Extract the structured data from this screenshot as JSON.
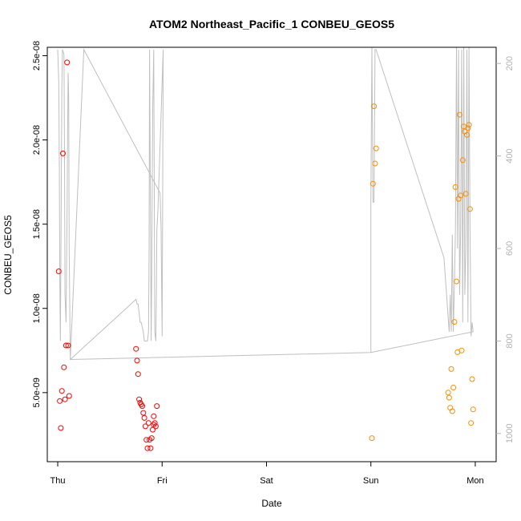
{
  "chart_data": {
    "type": "scatter",
    "title": "ATOM2 Northeast_Pacific_1 CONBEU_GEOS5",
    "xlabel": "Date",
    "ylabel": "CONBEU_GEOS5",
    "x_axis": {
      "unit": "days",
      "range": [
        -0.1,
        4.2
      ],
      "ticks": [
        {
          "value": 0,
          "label": "Thu"
        },
        {
          "value": 1,
          "label": "Fri"
        },
        {
          "value": 2,
          "label": "Sat"
        },
        {
          "value": 3,
          "label": "Sun"
        },
        {
          "value": 4,
          "label": "Mon"
        }
      ]
    },
    "y_axis": {
      "range": [
        9e-10,
        2.55e-08
      ],
      "ticks": [
        {
          "value": 5e-09,
          "label": "5.0e-09"
        },
        {
          "value": 1e-08,
          "label": "1.0e-08"
        },
        {
          "value": 1.5e-08,
          "label": "1.5e-08"
        },
        {
          "value": 2e-08,
          "label": "2.0e-08"
        },
        {
          "value": 2.5e-08,
          "label": "2.5e-08"
        }
      ]
    },
    "y2_axis": {
      "range": [
        1061,
        165
      ],
      "reversed": true,
      "color": "#b3b3b3",
      "ticks": [
        {
          "value": 200,
          "label": "200"
        },
        {
          "value": 400,
          "label": "400"
        },
        {
          "value": 600,
          "label": "600"
        },
        {
          "value": 800,
          "label": "800"
        },
        {
          "value": 1000,
          "label": "1000"
        }
      ]
    },
    "grid": false,
    "series": [
      {
        "color": "#ff0000",
        "marker": "open-circle",
        "points": [
          [
            0.01,
            1.22e-08
          ],
          [
            0.02,
            4.5e-09
          ],
          [
            0.03,
            2.9e-09
          ],
          [
            0.04,
            5.1e-09
          ],
          [
            0.05,
            1.92e-08
          ],
          [
            0.06,
            6.5e-09
          ],
          [
            0.07,
            4.6e-09
          ],
          [
            0.08,
            7.8e-09
          ],
          [
            0.09,
            2.46e-08
          ],
          [
            0.1,
            7.8e-09
          ],
          [
            0.11,
            4.8e-09
          ],
          [
            0.75,
            7.6e-09
          ],
          [
            0.76,
            6.9e-09
          ],
          [
            0.77,
            6.1e-09
          ],
          [
            0.78,
            4.6e-09
          ],
          [
            0.79,
            4.4e-09
          ],
          [
            0.8,
            4.3e-09
          ],
          [
            0.81,
            4.2e-09
          ],
          [
            0.82,
            3.8e-09
          ],
          [
            0.83,
            3.5e-09
          ],
          [
            0.84,
            3e-09
          ],
          [
            0.85,
            2.2e-09
          ],
          [
            0.86,
            1.7e-09
          ],
          [
            0.87,
            3.2e-09
          ],
          [
            0.88,
            2.2e-09
          ],
          [
            0.89,
            1.7e-09
          ],
          [
            0.9,
            2.3e-09
          ],
          [
            0.91,
            2.8e-09
          ],
          [
            0.92,
            3.1e-09
          ],
          [
            0.93,
            3.2e-09
          ],
          [
            0.94,
            3e-09
          ],
          [
            0.95,
            4.2e-09
          ],
          [
            0.92,
            3.6e-09
          ]
        ]
      },
      {
        "color": "#ff8c00",
        "marker": "open-circle",
        "points": [
          [
            3.01,
            2.3e-09
          ],
          [
            3.02,
            1.74e-08
          ],
          [
            3.03,
            2.2e-08
          ],
          [
            3.04,
            1.86e-08
          ],
          [
            3.05,
            1.95e-08
          ],
          [
            3.74,
            5e-09
          ],
          [
            3.75,
            4.7e-09
          ],
          [
            3.76,
            4.1e-09
          ],
          [
            3.77,
            6.4e-09
          ],
          [
            3.78,
            3.9e-09
          ],
          [
            3.79,
            5.3e-09
          ],
          [
            3.8,
            9.2e-09
          ],
          [
            3.81,
            1.72e-08
          ],
          [
            3.82,
            1.16e-08
          ],
          [
            3.83,
            7.4e-09
          ],
          [
            3.84,
            1.65e-08
          ],
          [
            3.85,
            2.15e-08
          ],
          [
            3.86,
            1.67e-08
          ],
          [
            3.87,
            7.5e-09
          ],
          [
            3.88,
            1.88e-08
          ],
          [
            3.89,
            2.08e-08
          ],
          [
            3.9,
            2.05e-08
          ],
          [
            3.91,
            1.68e-08
          ],
          [
            3.92,
            2.03e-08
          ],
          [
            3.93,
            2.07e-08
          ],
          [
            3.94,
            2.09e-08
          ],
          [
            3.95,
            1.59e-08
          ],
          [
            3.96,
            3.2e-09
          ],
          [
            3.97,
            5.8e-09
          ],
          [
            3.98,
            4e-09
          ]
        ]
      }
    ],
    "pressure_trace": {
      "color": "#bfbfbf",
      "axis": "y2",
      "points": [
        [
          0.0,
          170
        ],
        [
          0.01,
          240
        ],
        [
          0.015,
          420
        ],
        [
          0.02,
          660
        ],
        [
          0.025,
          800
        ],
        [
          0.03,
          640
        ],
        [
          0.035,
          420
        ],
        [
          0.04,
          250
        ],
        [
          0.045,
          170
        ],
        [
          0.06,
          180
        ],
        [
          0.065,
          400
        ],
        [
          0.07,
          700
        ],
        [
          0.08,
          760
        ],
        [
          0.09,
          520
        ],
        [
          0.095,
          340
        ],
        [
          0.1,
          220
        ],
        [
          0.105,
          270
        ],
        [
          0.11,
          600
        ],
        [
          0.12,
          840
        ],
        [
          0.25,
          170
        ],
        [
          0.98,
          480
        ],
        [
          0.99,
          560
        ],
        [
          1.0,
          790
        ],
        [
          1.01,
          170
        ],
        [
          0.96,
          520
        ],
        [
          0.95,
          560
        ],
        [
          0.945,
          700
        ],
        [
          0.94,
          800
        ],
        [
          0.93,
          780
        ],
        [
          0.92,
          170
        ],
        [
          0.91,
          300
        ],
        [
          0.9,
          680
        ],
        [
          0.895,
          800
        ],
        [
          0.88,
          170
        ],
        [
          0.875,
          600
        ],
        [
          0.87,
          780
        ],
        [
          0.86,
          800
        ],
        [
          0.83,
          800
        ],
        [
          0.82,
          780
        ],
        [
          0.8,
          760
        ],
        [
          0.79,
          760
        ],
        [
          0.78,
          740
        ],
        [
          0.77,
          720
        ],
        [
          0.76,
          720
        ],
        [
          0.75,
          710
        ],
        [
          0.12,
          840
        ],
        [
          3.0,
          825
        ],
        [
          3.0,
          500
        ],
        [
          3.01,
          165
        ],
        [
          3.02,
          500
        ],
        [
          3.03,
          500
        ],
        [
          3.04,
          170
        ],
        [
          3.05,
          170
        ],
        [
          3.7,
          620
        ],
        [
          3.75,
          780
        ],
        [
          3.76,
          700
        ],
        [
          3.77,
          780
        ],
        [
          3.78,
          570
        ],
        [
          3.79,
          780
        ],
        [
          3.8,
          680
        ],
        [
          3.81,
          560
        ],
        [
          3.82,
          165
        ],
        [
          3.83,
          600
        ],
        [
          3.84,
          170
        ],
        [
          3.85,
          700
        ],
        [
          3.86,
          560
        ],
        [
          3.87,
          170
        ],
        [
          3.88,
          760
        ],
        [
          3.89,
          165
        ],
        [
          3.9,
          700
        ],
        [
          3.91,
          600
        ],
        [
          3.92,
          170
        ],
        [
          3.93,
          760
        ],
        [
          3.94,
          165
        ],
        [
          3.95,
          560
        ],
        [
          3.96,
          790
        ],
        [
          3.97,
          760
        ],
        [
          3.98,
          780
        ],
        [
          3.0,
          825
        ]
      ]
    }
  }
}
